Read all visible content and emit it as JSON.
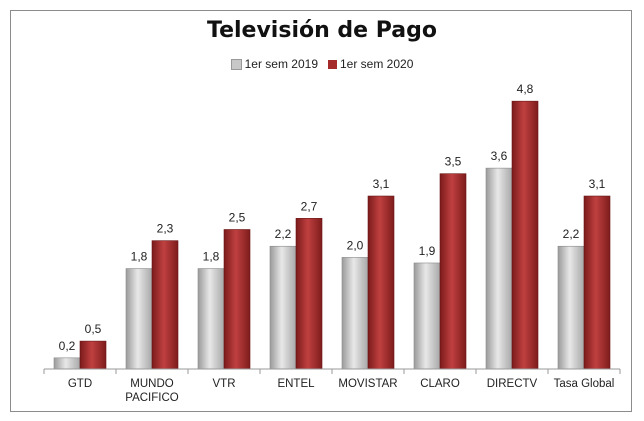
{
  "chart_data": {
    "type": "bar",
    "title": "Televisión de Pago",
    "categories": [
      [
        "GTD"
      ],
      [
        "MUNDO",
        "PACIFICO"
      ],
      [
        "VTR"
      ],
      [
        "ENTEL"
      ],
      [
        "MOVISTAR"
      ],
      [
        "CLARO"
      ],
      [
        "DIRECTV"
      ],
      [
        "Tasa Global"
      ]
    ],
    "series": [
      {
        "name": "1er sem 2019",
        "color": "#c8c8c8",
        "values": [
          0.2,
          1.8,
          1.8,
          2.2,
          2.0,
          1.9,
          3.6,
          2.2
        ],
        "labels": [
          "0,2",
          "1,8",
          "1,8",
          "2,2",
          "2,0",
          "1,9",
          "3,6",
          "2,2"
        ]
      },
      {
        "name": "1er sem 2020",
        "color": "#a52a2a",
        "values": [
          0.5,
          2.3,
          2.5,
          2.7,
          3.1,
          3.5,
          4.8,
          3.1
        ],
        "labels": [
          "0,5",
          "2,3",
          "2,5",
          "2,7",
          "3,1",
          "3,5",
          "4,8",
          "3,1"
        ]
      }
    ],
    "ylim": [
      0,
      5
    ],
    "grid": false,
    "legend_position": "top"
  }
}
